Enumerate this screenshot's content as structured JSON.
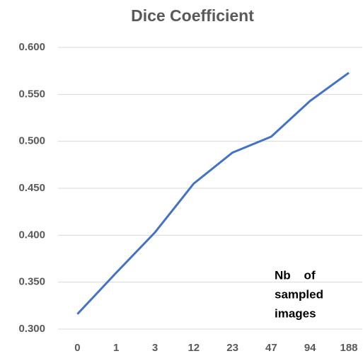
{
  "chart_data": {
    "type": "line",
    "title": "Dice Coefficient",
    "categories": [
      "0",
      "1",
      "3",
      "12",
      "23",
      "47",
      "94",
      "188"
    ],
    "series": [
      {
        "name": "Dice",
        "color": "#4472c4",
        "values": [
          0.316,
          0.36,
          0.403,
          0.455,
          0.488,
          0.505,
          0.543,
          0.573
        ]
      }
    ],
    "ylim": [
      0.3,
      0.6
    ],
    "yticks": [
      {
        "value": 0.3,
        "label": "0.300"
      },
      {
        "value": 0.35,
        "label": "0.350"
      },
      {
        "value": 0.4,
        "label": "0.400"
      },
      {
        "value": 0.45,
        "label": "0.450"
      },
      {
        "value": 0.5,
        "label": "0.500"
      },
      {
        "value": 0.55,
        "label": "0.550"
      },
      {
        "value": 0.6,
        "label": "0.600"
      }
    ],
    "grid": true,
    "annotation": [
      "Nb    of",
      "sampled",
      "images"
    ]
  }
}
